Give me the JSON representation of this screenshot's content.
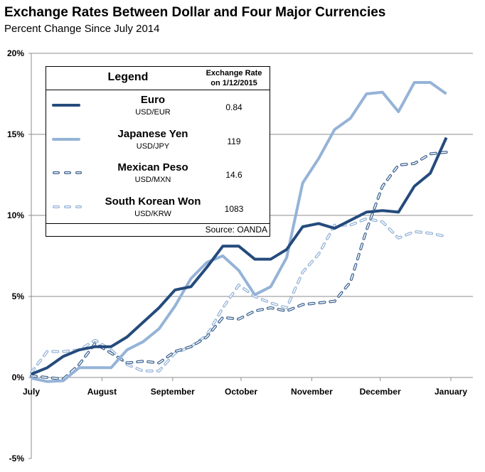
{
  "title": "Exchange Rates Between Dollar and Four Major Currencies",
  "subtitle": "Percent Change Since July 2014",
  "legend": {
    "title": "Legend",
    "rate_header_line1": "Exchange Rate",
    "rate_header_line2": "on 1/12/2015",
    "source": "Source: OANDA",
    "items": [
      {
        "name": "Euro",
        "pair": "USD/EUR",
        "rate": "0.84"
      },
      {
        "name": "Japanese Yen",
        "pair": "USD/JPY",
        "rate": "119"
      },
      {
        "name": "Mexican Peso",
        "pair": "USD/MXN",
        "rate": "14.6"
      },
      {
        "name": "South Korean Won",
        "pair": "USD/KRW",
        "rate": "1083"
      }
    ]
  },
  "chart_data": {
    "type": "line",
    "title": "Exchange Rates Between Dollar and Four Major Currencies",
    "subtitle": "Percent Change Since July 2014",
    "x_tick_labels": [
      "July",
      "August",
      "September",
      "October",
      "November",
      "December",
      "January"
    ],
    "y_tick_labels": [
      "-5%",
      "0%",
      "5%",
      "10%",
      "15%",
      "20%"
    ],
    "ylim": [
      -5,
      20
    ],
    "grid": true,
    "legend_placement": "top-left",
    "x_start": "2014-07-01",
    "x_step_days": 7,
    "series": [
      {
        "name": "Euro",
        "color": "#254b7c",
        "style": "solid",
        "values": [
          0.2,
          0.6,
          1.3,
          1.7,
          1.9,
          1.9,
          2.5,
          3.4,
          4.3,
          5.4,
          5.6,
          6.8,
          8.1,
          8.1,
          7.3,
          7.3,
          7.9,
          9.3,
          9.5,
          9.2,
          9.7,
          10.2,
          10.3,
          10.2,
          11.8,
          12.6,
          14.8
        ]
      },
      {
        "name": "Japanese Yen",
        "color": "#95b3d7",
        "style": "solid",
        "values": [
          -0.05,
          -0.25,
          -0.2,
          0.6,
          0.6,
          0.6,
          1.7,
          2.2,
          3.0,
          4.4,
          6.1,
          7.1,
          7.5,
          6.6,
          5.1,
          5.6,
          7.4,
          12.0,
          13.5,
          15.3,
          16.0,
          17.5,
          17.6,
          16.4,
          18.2,
          18.2,
          17.5
        ]
      },
      {
        "name": "Mexican Peso",
        "color": "#3f6590",
        "style": "dashed",
        "values": [
          0.1,
          0.0,
          -0.1,
          0.8,
          2.1,
          1.5,
          0.9,
          1.0,
          0.9,
          1.6,
          1.9,
          2.5,
          3.7,
          3.6,
          4.1,
          4.3,
          4.1,
          4.5,
          4.6,
          4.7,
          5.9,
          9.1,
          11.8,
          13.1,
          13.2,
          13.8,
          13.9
        ]
      },
      {
        "name": "South Korean Won",
        "color": "#95b3d7",
        "style": "dashed",
        "values": [
          0.3,
          1.6,
          1.6,
          1.7,
          2.3,
          1.7,
          0.8,
          0.4,
          0.4,
          1.5,
          1.9,
          2.6,
          4.3,
          5.7,
          5.0,
          4.6,
          4.3,
          6.5,
          7.6,
          9.4,
          9.4,
          9.8,
          9.6,
          8.6,
          9.0,
          8.9,
          8.7
        ]
      }
    ]
  }
}
